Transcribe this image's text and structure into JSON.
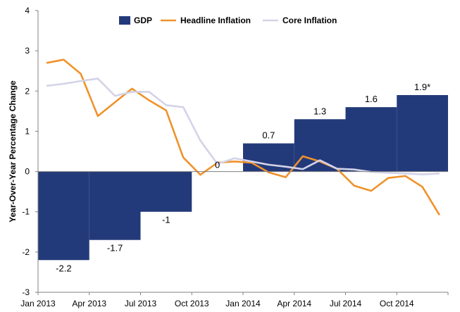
{
  "chart_data": {
    "type": "bar",
    "title": "",
    "xlabel": "",
    "ylabel": "Year-Over-Year Percentage Change",
    "ylim": [
      -3,
      4
    ],
    "yticks": [
      -3,
      -2,
      -1,
      0,
      1,
      2,
      3,
      4
    ],
    "x_ticks": [
      "Jan 2013",
      "Apr 2013",
      "Jul 2013",
      "Oct 2013",
      "Jan 2014",
      "Apr 2014",
      "Jul 2014",
      "Oct 2014"
    ],
    "legend_position": "top",
    "gdp": {
      "name": "GDP",
      "color": "#233a7a",
      "bars": [
        {
          "start_month": 0,
          "end_month": 3,
          "value": -2.2,
          "label": "-2.2"
        },
        {
          "start_month": 3,
          "end_month": 6,
          "value": -1.7,
          "label": "-1.7"
        },
        {
          "start_month": 6,
          "end_month": 9,
          "value": -1.0,
          "label": "-1"
        },
        {
          "start_month": 9,
          "end_month": 12,
          "value": 0,
          "label": "0"
        },
        {
          "start_month": 12,
          "end_month": 15,
          "value": 0.7,
          "label": "0.7"
        },
        {
          "start_month": 15,
          "end_month": 18,
          "value": 1.3,
          "label": "1.3"
        },
        {
          "start_month": 18,
          "end_month": 21,
          "value": 1.6,
          "label": "1.6"
        },
        {
          "start_month": 21,
          "end_month": 24,
          "value": 1.9,
          "label": "1.9*"
        }
      ]
    },
    "series": [
      {
        "name": "Headline Inflation",
        "color": "#f0922b",
        "x": [
          "Jan 2013",
          "Feb 2013",
          "Mar 2013",
          "Apr 2013",
          "May 2013",
          "Jun 2013",
          "Jul 2013",
          "Aug 2013",
          "Sep 2013",
          "Oct 2013",
          "Nov 2013",
          "Dec 2013",
          "Jan 2014",
          "Feb 2014",
          "Mar 2014",
          "Apr 2014",
          "May 2014",
          "Jun 2014",
          "Jul 2014",
          "Aug 2014",
          "Sep 2014",
          "Oct 2014",
          "Nov 2014",
          "Dec 2014"
        ],
        "values": [
          2.7,
          2.78,
          2.43,
          1.38,
          1.72,
          2.06,
          1.77,
          1.52,
          0.35,
          -0.08,
          0.22,
          0.25,
          0.22,
          -0.02,
          -0.14,
          0.38,
          0.25,
          0.07,
          -0.35,
          -0.48,
          -0.16,
          -0.11,
          -0.38,
          -1.08
        ]
      },
      {
        "name": "Core Inflation",
        "color": "#d3d3e8",
        "x": [
          "Jan 2013",
          "Feb 2013",
          "Mar 2013",
          "Apr 2013",
          "May 2013",
          "Jun 2013",
          "Jul 2013",
          "Aug 2013",
          "Sep 2013",
          "Oct 2013",
          "Nov 2013",
          "Dec 2013",
          "Jan 2014",
          "Feb 2014",
          "Mar 2014",
          "Apr 2014",
          "May 2014",
          "Jun 2014",
          "Jul 2014",
          "Aug 2014",
          "Sep 2014",
          "Oct 2014",
          "Nov 2014",
          "Dec 2014"
        ],
        "values": [
          2.13,
          2.18,
          2.25,
          2.31,
          1.88,
          1.98,
          1.98,
          1.65,
          1.6,
          0.77,
          0.19,
          0.33,
          0.25,
          0.17,
          0.12,
          0.06,
          0.28,
          0.07,
          0.05,
          -0.01,
          -0.03,
          -0.05,
          -0.07,
          -0.05
        ]
      }
    ]
  }
}
